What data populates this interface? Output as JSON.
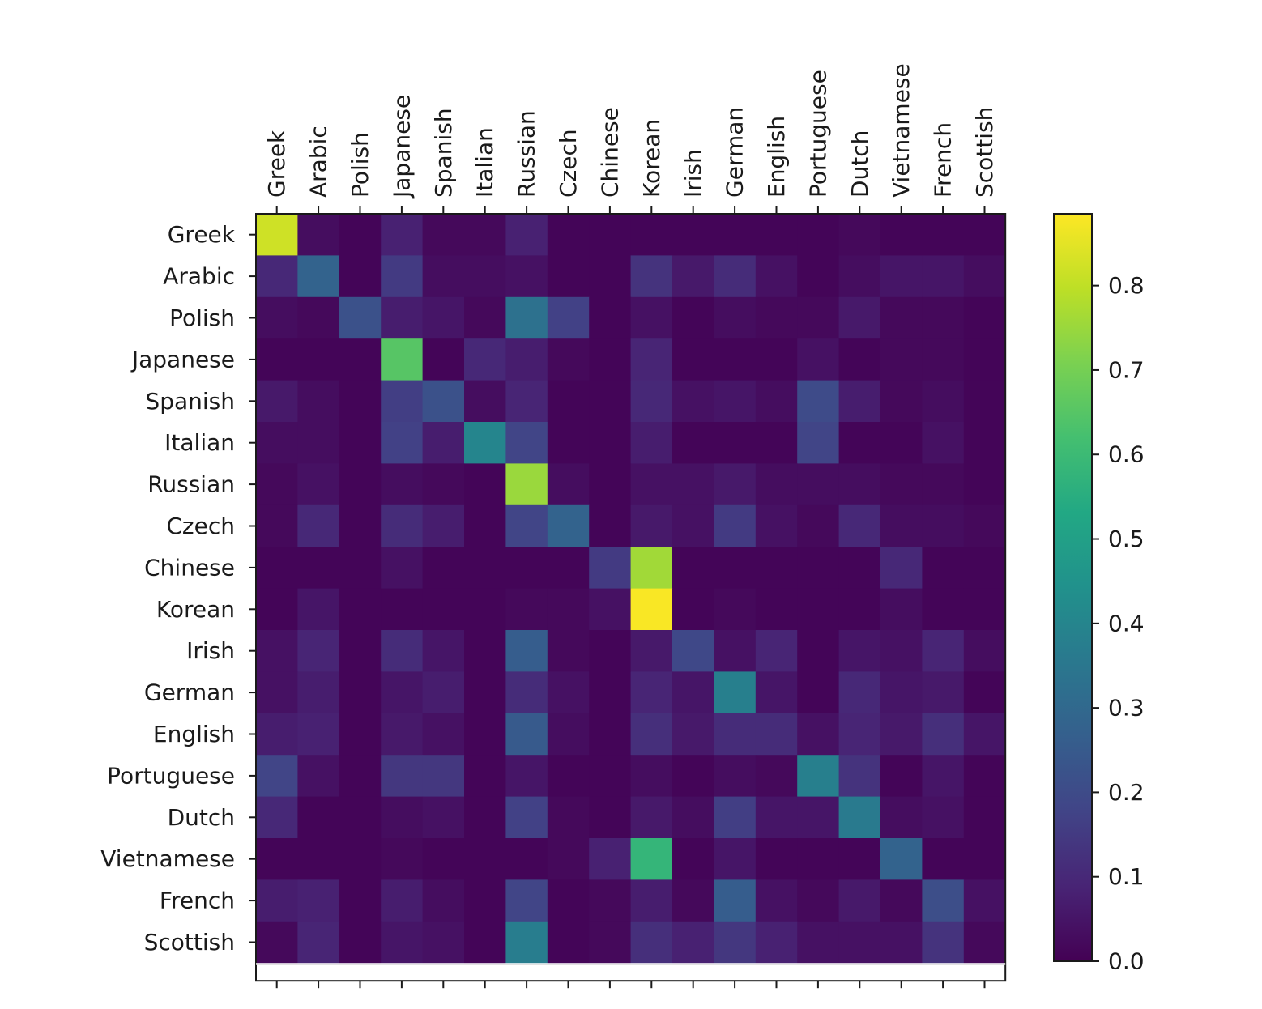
{
  "chart_data": {
    "type": "heatmap",
    "title": "",
    "xlabel": "",
    "ylabel": "",
    "x_tick_position": "top",
    "x_categories": [
      "Greek",
      "Arabic",
      "Polish",
      "Japanese",
      "Spanish",
      "Italian",
      "Russian",
      "Czech",
      "Chinese",
      "Korean",
      "Irish",
      "German",
      "English",
      "Portuguese",
      "Dutch",
      "Vietnamese",
      "French",
      "Scottish"
    ],
    "y_categories": [
      "Greek",
      "Arabic",
      "Polish",
      "Japanese",
      "Spanish",
      "Italian",
      "Russian",
      "Czech",
      "Chinese",
      "Korean",
      "Irish",
      "German",
      "English",
      "Portuguese",
      "Dutch",
      "Vietnamese",
      "French",
      "Scottish"
    ],
    "colormap": "viridis",
    "vmin": 0.0,
    "vmax": 0.885,
    "values": [
      [
        0.82,
        0.03,
        0.01,
        0.08,
        0.02,
        0.02,
        0.08,
        0.01,
        0.01,
        0.01,
        0.01,
        0.01,
        0.01,
        0.01,
        0.02,
        0.01,
        0.01,
        0.01
      ],
      [
        0.1,
        0.28,
        0.01,
        0.15,
        0.03,
        0.03,
        0.04,
        0.01,
        0.01,
        0.13,
        0.06,
        0.11,
        0.04,
        0.01,
        0.03,
        0.05,
        0.05,
        0.03
      ],
      [
        0.03,
        0.02,
        0.22,
        0.07,
        0.05,
        0.02,
        0.33,
        0.17,
        0.01,
        0.04,
        0.01,
        0.03,
        0.02,
        0.02,
        0.06,
        0.02,
        0.02,
        0.01
      ],
      [
        0.01,
        0.01,
        0.01,
        0.65,
        0.01,
        0.1,
        0.07,
        0.02,
        0.01,
        0.09,
        0.01,
        0.01,
        0.01,
        0.04,
        0.01,
        0.02,
        0.02,
        0.01
      ],
      [
        0.06,
        0.03,
        0.01,
        0.16,
        0.22,
        0.03,
        0.09,
        0.01,
        0.01,
        0.1,
        0.04,
        0.05,
        0.03,
        0.2,
        0.07,
        0.02,
        0.03,
        0.01
      ],
      [
        0.03,
        0.03,
        0.01,
        0.17,
        0.07,
        0.4,
        0.18,
        0.01,
        0.01,
        0.07,
        0.01,
        0.01,
        0.01,
        0.18,
        0.01,
        0.01,
        0.04,
        0.01
      ],
      [
        0.02,
        0.04,
        0.01,
        0.03,
        0.02,
        0.01,
        0.75,
        0.03,
        0.01,
        0.04,
        0.04,
        0.06,
        0.03,
        0.03,
        0.03,
        0.02,
        0.02,
        0.01
      ],
      [
        0.02,
        0.1,
        0.01,
        0.11,
        0.07,
        0.01,
        0.18,
        0.28,
        0.01,
        0.06,
        0.04,
        0.15,
        0.04,
        0.02,
        0.1,
        0.03,
        0.03,
        0.02
      ],
      [
        0.01,
        0.01,
        0.01,
        0.04,
        0.01,
        0.01,
        0.01,
        0.01,
        0.15,
        0.76,
        0.01,
        0.01,
        0.01,
        0.01,
        0.01,
        0.1,
        0.01,
        0.01
      ],
      [
        0.01,
        0.05,
        0.01,
        0.01,
        0.01,
        0.01,
        0.02,
        0.02,
        0.04,
        0.88,
        0.01,
        0.02,
        0.01,
        0.01,
        0.01,
        0.03,
        0.01,
        0.01
      ],
      [
        0.04,
        0.09,
        0.01,
        0.11,
        0.05,
        0.01,
        0.26,
        0.02,
        0.01,
        0.06,
        0.19,
        0.04,
        0.09,
        0.01,
        0.05,
        0.04,
        0.09,
        0.03
      ],
      [
        0.04,
        0.07,
        0.01,
        0.05,
        0.07,
        0.01,
        0.11,
        0.04,
        0.01,
        0.09,
        0.05,
        0.38,
        0.05,
        0.01,
        0.1,
        0.05,
        0.06,
        0.01
      ],
      [
        0.07,
        0.08,
        0.01,
        0.06,
        0.04,
        0.01,
        0.25,
        0.03,
        0.01,
        0.12,
        0.06,
        0.11,
        0.11,
        0.04,
        0.09,
        0.06,
        0.12,
        0.05
      ],
      [
        0.18,
        0.04,
        0.01,
        0.14,
        0.14,
        0.01,
        0.05,
        0.01,
        0.01,
        0.03,
        0.01,
        0.03,
        0.02,
        0.38,
        0.13,
        0.01,
        0.05,
        0.01
      ],
      [
        0.1,
        0.01,
        0.01,
        0.03,
        0.04,
        0.01,
        0.17,
        0.02,
        0.01,
        0.06,
        0.03,
        0.16,
        0.05,
        0.05,
        0.36,
        0.03,
        0.04,
        0.01
      ],
      [
        0.01,
        0.01,
        0.01,
        0.02,
        0.01,
        0.01,
        0.01,
        0.02,
        0.08,
        0.58,
        0.01,
        0.05,
        0.01,
        0.01,
        0.01,
        0.28,
        0.01,
        0.01
      ],
      [
        0.07,
        0.08,
        0.01,
        0.07,
        0.03,
        0.01,
        0.18,
        0.01,
        0.02,
        0.07,
        0.02,
        0.26,
        0.04,
        0.02,
        0.06,
        0.02,
        0.21,
        0.04
      ],
      [
        0.02,
        0.09,
        0.01,
        0.05,
        0.04,
        0.01,
        0.37,
        0.01,
        0.02,
        0.12,
        0.08,
        0.14,
        0.08,
        0.04,
        0.04,
        0.04,
        0.13,
        0.02
      ]
    ],
    "colorbar": {
      "ticks": [
        0.0,
        0.1,
        0.2,
        0.3,
        0.4,
        0.5,
        0.6,
        0.7,
        0.8
      ],
      "tick_labels": [
        "0.0",
        "0.1",
        "0.2",
        "0.3",
        "0.4",
        "0.5",
        "0.6",
        "0.7",
        "0.8"
      ]
    }
  }
}
